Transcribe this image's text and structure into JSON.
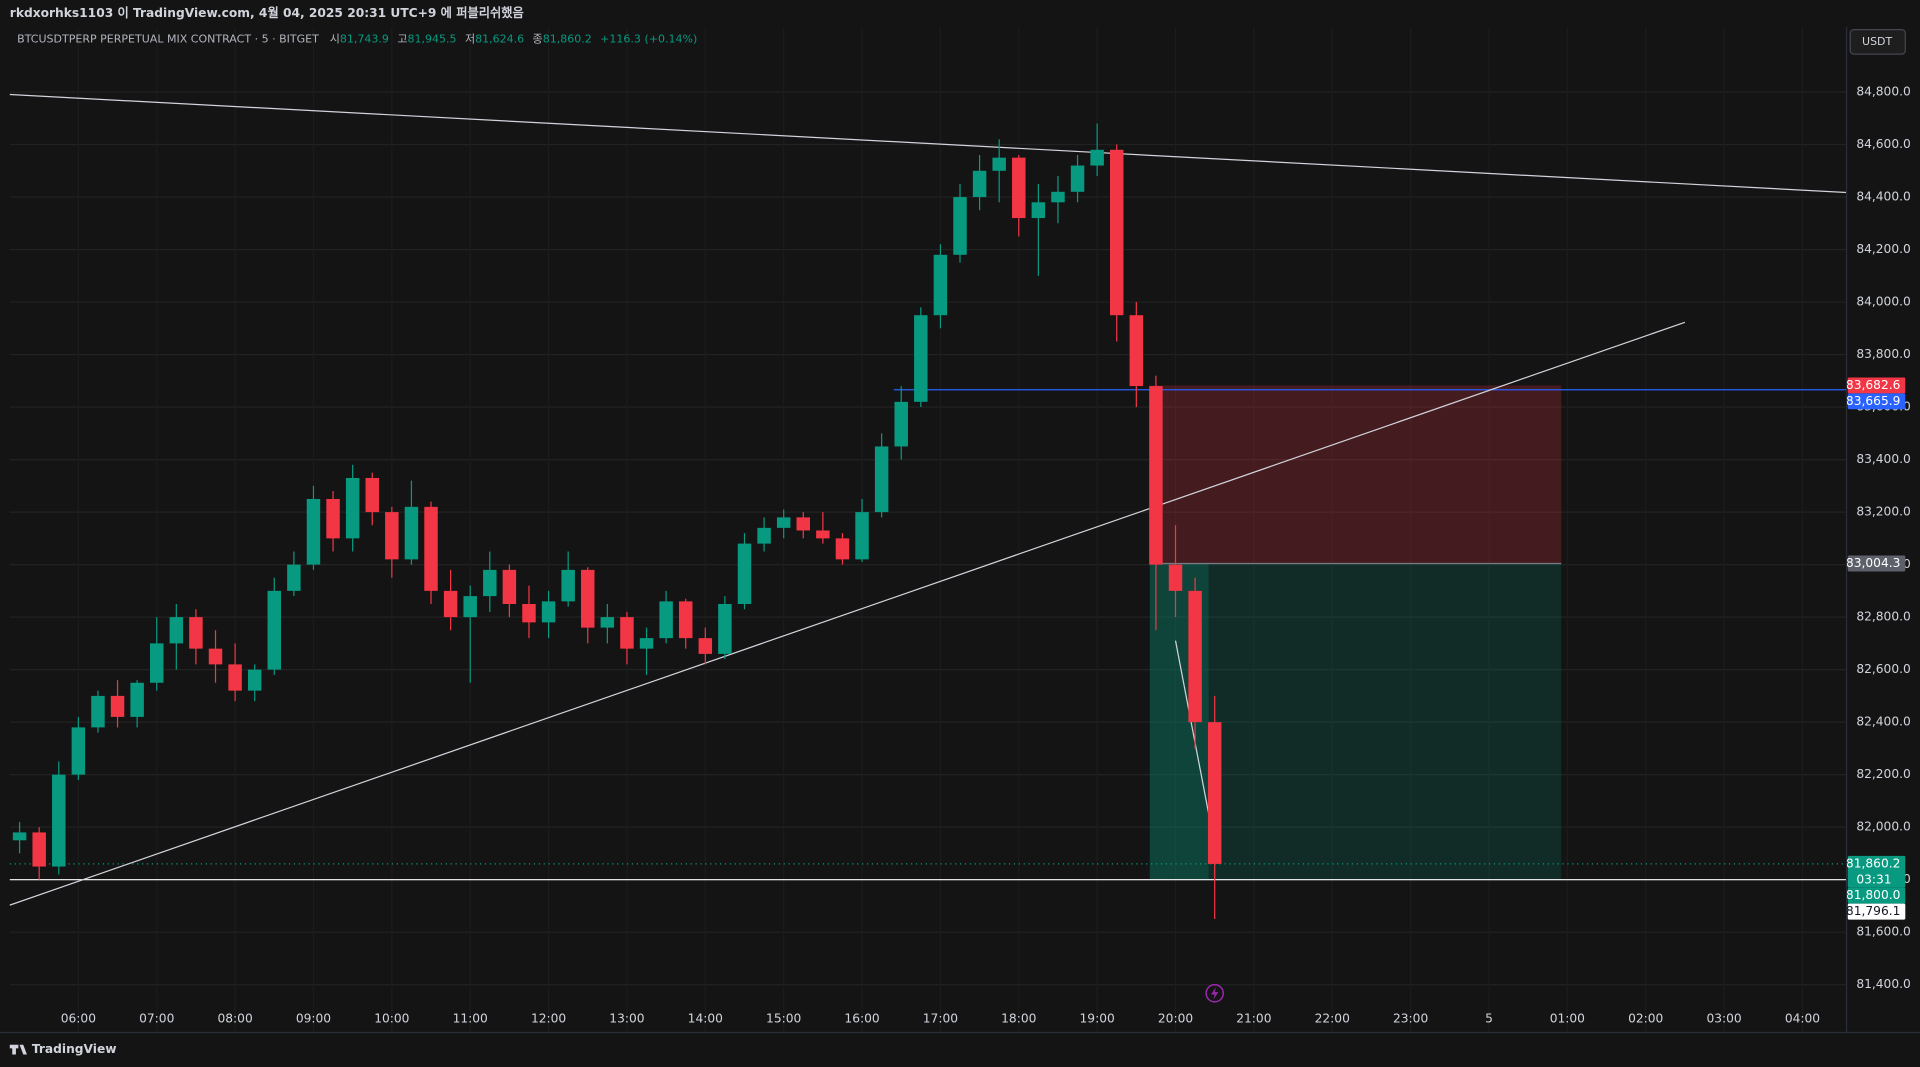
{
  "chart_data": {
    "type": "candlestick",
    "published": "rkdxorhks1103 이 TradingView.com, 4월 04, 2025 20:31 UTC+9 에 퍼블리쉬했음",
    "symbol": "BTCUSDTPERP PERPETUAL MIX CONTRACT · 5 · BITGET",
    "legend": [
      {
        "name": "시",
        "value": {
          "value": 81743.9,
          "label": "81,743.9"
        }
      },
      {
        "name": "고",
        "value": {
          "value": 81945.5,
          "label": "81,945.5"
        }
      },
      {
        "name": "저",
        "value": {
          "value": 81624.6,
          "label": "81,624.6"
        }
      },
      {
        "name": "종",
        "value": {
          "value": 81860.2,
          "label": "81,860.2"
        }
      }
    ],
    "change": "+116.3 (+0.14%)",
    "currency": "USDT",
    "brand": "TradingView",
    "up_color": "#089981",
    "down_color": "#f23645",
    "grid": true,
    "xlim": [
      5.125,
      28.5625
    ],
    "ylim": [
      81218,
      85047
    ],
    "xticks": [
      {
        "value": 6,
        "label": "06:00"
      },
      {
        "value": 7,
        "label": "07:00"
      },
      {
        "value": 8,
        "label": "08:00"
      },
      {
        "value": 9,
        "label": "09:00"
      },
      {
        "value": 10,
        "label": "10:00"
      },
      {
        "value": 11,
        "label": "11:00"
      },
      {
        "value": 12,
        "label": "12:00"
      },
      {
        "value": 13,
        "label": "13:00"
      },
      {
        "value": 14,
        "label": "14:00"
      },
      {
        "value": 15,
        "label": "15:00"
      },
      {
        "value": 16,
        "label": "16:00"
      },
      {
        "value": 17,
        "label": "17:00"
      },
      {
        "value": 18,
        "label": "18:00"
      },
      {
        "value": 19,
        "label": "19:00"
      },
      {
        "value": 20,
        "label": "20:00"
      },
      {
        "value": 21,
        "label": "21:00"
      },
      {
        "value": 22,
        "label": "22:00"
      },
      {
        "value": 23,
        "label": "23:00"
      },
      {
        "value": 24,
        "label": "5"
      },
      {
        "value": 25,
        "label": "01:00"
      },
      {
        "value": 26,
        "label": "02:00"
      },
      {
        "value": 27,
        "label": "03:00"
      },
      {
        "value": 28,
        "label": "04:00"
      }
    ],
    "yticks": [
      {
        "value": 81400,
        "label": "81,400.0"
      },
      {
        "value": 81600,
        "label": "81,600.0"
      },
      {
        "value": 81800,
        "label": "81,800.0"
      },
      {
        "value": 82000,
        "label": "82,000.0"
      },
      {
        "value": 82200,
        "label": "82,200.0"
      },
      {
        "value": 82400,
        "label": "82,400.0"
      },
      {
        "value": 82600,
        "label": "82,600.0"
      },
      {
        "value": 82800,
        "label": "82,800.0"
      },
      {
        "value": 83000,
        "label": "83,000.0"
      },
      {
        "value": 83200,
        "label": "83,200.0"
      },
      {
        "value": 83400,
        "label": "83,400.0"
      },
      {
        "value": 83600,
        "label": "83,600.0"
      },
      {
        "value": 83800,
        "label": "83,800.0"
      },
      {
        "value": 84000,
        "label": "84,000.0"
      },
      {
        "value": 84200,
        "label": "84,200.0"
      },
      {
        "value": 84400,
        "label": "84,400.0"
      },
      {
        "value": 84600,
        "label": "84,600.0"
      },
      {
        "value": 84800,
        "label": "84,800.0"
      }
    ],
    "x": [
      5.25,
      5.5,
      5.75,
      6,
      6.25,
      6.5,
      6.75,
      7,
      7.25,
      7.5,
      7.75,
      8,
      8.25,
      8.5,
      8.75,
      9,
      9.25,
      9.5,
      9.75,
      10,
      10.25,
      10.5,
      10.75,
      11,
      11.25,
      11.5,
      11.75,
      12,
      12.25,
      12.5,
      12.75,
      13,
      13.25,
      13.5,
      13.75,
      14,
      14.25,
      14.5,
      14.75,
      15,
      15.25,
      15.5,
      15.75,
      16,
      16.25,
      16.5,
      16.75,
      17,
      17.25,
      17.5,
      17.75,
      18,
      18.25,
      18.5,
      18.75,
      19,
      19.25,
      19.5,
      19.75,
      20,
      20.25,
      20.5
    ],
    "open": [
      81950,
      81980,
      81850,
      82200,
      82380,
      82500,
      82420,
      82550,
      82700,
      82800,
      82680,
      82620,
      82520,
      82600,
      82900,
      83000,
      83250,
      83100,
      83330,
      83200,
      83020,
      83220,
      82900,
      82800,
      82880,
      82980,
      82850,
      82780,
      82860,
      82980,
      82760,
      82800,
      82680,
      82720,
      82860,
      82720,
      82660,
      82850,
      83080,
      83140,
      83180,
      83130,
      83100,
      83020,
      83200,
      83450,
      83620,
      83950,
      84180,
      84400,
      84500,
      84550,
      84320,
      84380,
      84420,
      84520,
      84580,
      83950,
      83680,
      83000,
      82900,
      82400
    ],
    "high": [
      82020,
      82000,
      82250,
      82420,
      82520,
      82560,
      82560,
      82800,
      82850,
      82830,
      82750,
      82700,
      82620,
      82950,
      83050,
      83300,
      83280,
      83380,
      83350,
      83220,
      83320,
      83240,
      82980,
      82920,
      83050,
      83000,
      82920,
      82900,
      83050,
      82990,
      82850,
      82820,
      82760,
      82900,
      82870,
      82760,
      82880,
      83120,
      83180,
      83210,
      83200,
      83200,
      83120,
      83250,
      83500,
      83680,
      83980,
      84220,
      84450,
      84560,
      84620,
      84560,
      84450,
      84480,
      84560,
      84680,
      84600,
      84000,
      83720,
      83150,
      82950,
      82500
    ],
    "low": [
      81900,
      81800,
      81820,
      82180,
      82360,
      82380,
      82380,
      82520,
      82600,
      82620,
      82550,
      82480,
      82480,
      82580,
      82880,
      82980,
      83050,
      83050,
      83150,
      82950,
      83000,
      82850,
      82750,
      82550,
      82820,
      82800,
      82720,
      82720,
      82840,
      82700,
      82700,
      82620,
      82580,
      82700,
      82680,
      82620,
      82640,
      82830,
      83050,
      83100,
      83100,
      83080,
      83000,
      83010,
      83180,
      83400,
      83600,
      83900,
      84150,
      84350,
      84380,
      84250,
      84100,
      84300,
      84380,
      84480,
      83850,
      83600,
      82750,
      82800,
      82300,
      81650
    ],
    "close": [
      81980,
      81850,
      82200,
      82380,
      82500,
      82420,
      82550,
      82700,
      82800,
      82680,
      82620,
      82520,
      82600,
      82900,
      83000,
      83250,
      83100,
      83330,
      83200,
      83020,
      83220,
      82900,
      82800,
      82880,
      82980,
      82850,
      82780,
      82860,
      82980,
      82760,
      82800,
      82680,
      82720,
      82860,
      82720,
      82660,
      82850,
      83080,
      83140,
      83180,
      83130,
      83100,
      83020,
      83200,
      83450,
      83620,
      83950,
      84180,
      84400,
      84500,
      84550,
      84320,
      84380,
      84420,
      84520,
      84580,
      83950,
      83680,
      83000,
      82900,
      82400,
      81860
    ],
    "price_labels": [
      {
        "value": 83682.6,
        "label": "83,682.6",
        "color": "#f23645"
      },
      {
        "value": 83665.9,
        "label": "83,665.9",
        "color": "#2962ff"
      },
      {
        "value": 83004.3,
        "label": "83,004.3",
        "color": "#5d606b"
      },
      {
        "value": 81860.2,
        "label": "81,860.2",
        "color": "#089981"
      },
      {
        "value": 81800,
        "label": "81,800.0",
        "color": "#089981"
      },
      {
        "value": 81796.1,
        "label": "81,796.1",
        "color": "#ffffff"
      }
    ],
    "countdown": "03:31"
  }
}
